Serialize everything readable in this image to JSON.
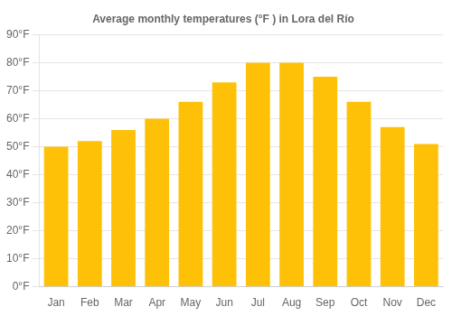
{
  "chart_data": {
    "type": "bar",
    "title": "Average monthly temperatures (°F ) in Lora del Río",
    "categories": [
      "Jan",
      "Feb",
      "Mar",
      "Apr",
      "May",
      "Jun",
      "Jul",
      "Aug",
      "Sep",
      "Oct",
      "Nov",
      "Dec"
    ],
    "values": [
      50,
      52,
      56,
      60,
      66,
      73,
      80,
      80,
      75,
      66,
      57,
      51
    ],
    "color": "#FFC107",
    "ylim": [
      0,
      90
    ],
    "yticks": [
      {
        "value": 0,
        "label": "0°F"
      },
      {
        "value": 10,
        "label": "10°F"
      },
      {
        "value": 20,
        "label": "20°F"
      },
      {
        "value": 30,
        "label": "30°F"
      },
      {
        "value": 40,
        "label": "40°F"
      },
      {
        "value": 50,
        "label": "50°F"
      },
      {
        "value": 60,
        "label": "60°F"
      },
      {
        "value": 70,
        "label": "70°F"
      },
      {
        "value": 80,
        "label": "80°F"
      },
      {
        "value": 90,
        "label": "90°F"
      }
    ],
    "grid": true
  }
}
